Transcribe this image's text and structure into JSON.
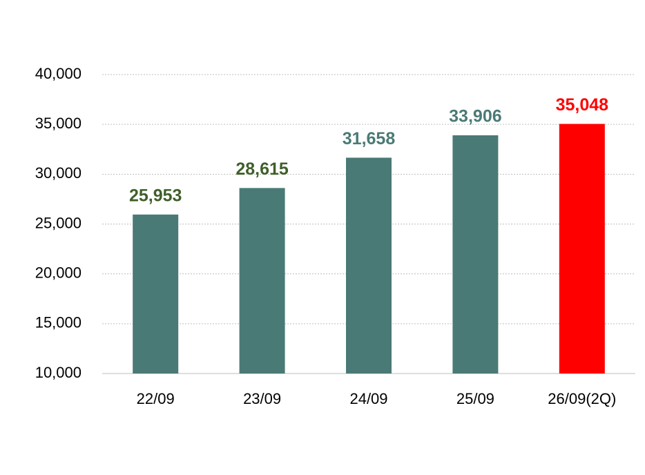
{
  "chart_data": {
    "type": "bar",
    "categories": [
      "22/09",
      "23/09",
      "24/09",
      "25/09",
      "26/09(2Q)"
    ],
    "values": [
      25953,
      28615,
      31658,
      33906,
      35048
    ],
    "value_labels": [
      "25,953",
      "28,615",
      "31,658",
      "33,906",
      "35,048"
    ],
    "colors": [
      "#4a7a75",
      "#4a7a75",
      "#4a7a75",
      "#4a7a75",
      "#ff0000"
    ],
    "label_colors": [
      "#3f5f2a",
      "#3f5f2a",
      "#4a7a75",
      "#4a7a75",
      "#ff0000"
    ],
    "ylim": [
      10000,
      40000
    ],
    "yticks": [
      {
        "value": 10000,
        "label": "10,000"
      },
      {
        "value": 15000,
        "label": "15,000"
      },
      {
        "value": 20000,
        "label": "20,000"
      },
      {
        "value": 25000,
        "label": "25,000"
      },
      {
        "value": 30000,
        "label": "30,000"
      },
      {
        "value": 35000,
        "label": "35,000"
      },
      {
        "value": 40000,
        "label": "40,000"
      }
    ],
    "grid": true
  }
}
